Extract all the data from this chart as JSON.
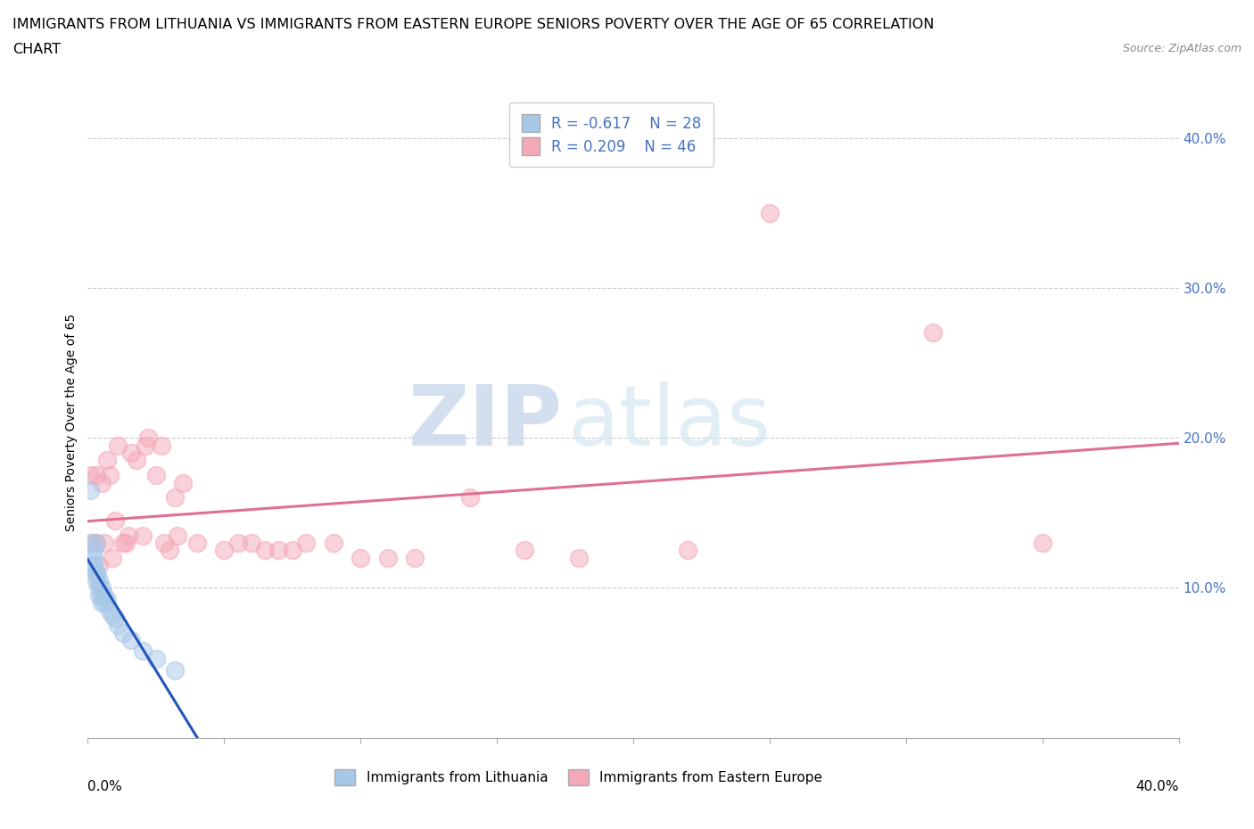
{
  "title_line1": "IMMIGRANTS FROM LITHUANIA VS IMMIGRANTS FROM EASTERN EUROPE SENIORS POVERTY OVER THE AGE OF 65 CORRELATION",
  "title_line2": "CHART",
  "source": "Source: ZipAtlas.com",
  "ylabel": "Seniors Poverty Over the Age of 65",
  "r_lithuania": -0.617,
  "n_lithuania": 28,
  "r_eastern_europe": 0.209,
  "n_eastern_europe": 46,
  "color_lithuania": "#a8c8e8",
  "color_eastern_europe": "#f4a8b8",
  "color_line_lithuania": "#2255bb",
  "color_line_eastern_europe": "#e07090",
  "legend_label_lithuania": "Immigrants from Lithuania",
  "legend_label_eastern_europe": "Immigrants from Eastern Europe",
  "watermark_zip": "ZIP",
  "watermark_atlas": "atlas",
  "background_color": "#ffffff",
  "scatter_lithuania_x": [
    0.001,
    0.001,
    0.002,
    0.002,
    0.002,
    0.002,
    0.003,
    0.003,
    0.003,
    0.003,
    0.004,
    0.004,
    0.004,
    0.005,
    0.005,
    0.005,
    0.006,
    0.006,
    0.007,
    0.008,
    0.009,
    0.01,
    0.011,
    0.013,
    0.016,
    0.02,
    0.025,
    0.032
  ],
  "scatter_lithuania_y": [
    0.13,
    0.165,
    0.125,
    0.12,
    0.115,
    0.115,
    0.13,
    0.105,
    0.11,
    0.11,
    0.105,
    0.095,
    0.1,
    0.1,
    0.095,
    0.09,
    0.095,
    0.09,
    0.092,
    0.085,
    0.082,
    0.08,
    0.075,
    0.07,
    0.065,
    0.058,
    0.053,
    0.045
  ],
  "scatter_eastern_x": [
    0.001,
    0.002,
    0.003,
    0.003,
    0.004,
    0.005,
    0.006,
    0.007,
    0.008,
    0.009,
    0.01,
    0.011,
    0.013,
    0.014,
    0.015,
    0.016,
    0.018,
    0.02,
    0.021,
    0.022,
    0.025,
    0.027,
    0.028,
    0.03,
    0.032,
    0.033,
    0.035,
    0.04,
    0.05,
    0.055,
    0.06,
    0.065,
    0.07,
    0.075,
    0.08,
    0.09,
    0.1,
    0.11,
    0.12,
    0.14,
    0.16,
    0.18,
    0.22,
    0.25,
    0.31,
    0.35
  ],
  "scatter_eastern_y": [
    0.175,
    0.13,
    0.175,
    0.13,
    0.115,
    0.17,
    0.13,
    0.185,
    0.175,
    0.12,
    0.145,
    0.195,
    0.13,
    0.13,
    0.135,
    0.19,
    0.185,
    0.135,
    0.195,
    0.2,
    0.175,
    0.195,
    0.13,
    0.125,
    0.16,
    0.135,
    0.17,
    0.13,
    0.125,
    0.13,
    0.13,
    0.125,
    0.125,
    0.125,
    0.13,
    0.13,
    0.12,
    0.12,
    0.12,
    0.16,
    0.125,
    0.12,
    0.125,
    0.35,
    0.27,
    0.13
  ],
  "xlim": [
    0.0,
    0.4
  ],
  "ylim": [
    0.0,
    0.42
  ],
  "ytick_positions": [
    0.1,
    0.2,
    0.3,
    0.4
  ],
  "ytick_labels": [
    "10.0%",
    "20.0%",
    "30.0%",
    "40.0%"
  ],
  "xtick_positions": [
    0.0,
    0.05,
    0.1,
    0.15,
    0.2,
    0.25,
    0.3,
    0.35,
    0.4
  ],
  "grid_color": "#cccccc",
  "title_fontsize": 11.5,
  "axis_label_fontsize": 10,
  "tick_fontsize": 11,
  "legend_fontsize": 12
}
